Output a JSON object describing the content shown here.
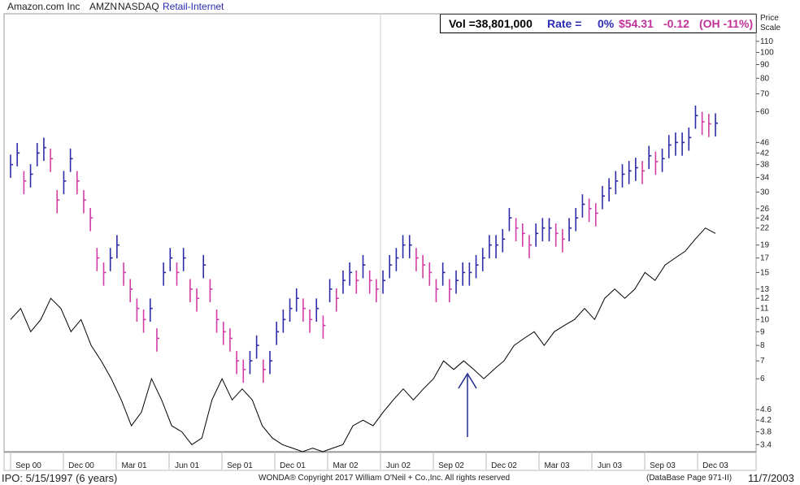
{
  "header": {
    "company": "Amazon.com Inc",
    "ticker": "AMZN",
    "exchange": "NASDAQ",
    "industry_group": "Retail-Internet"
  },
  "stats": {
    "volume": "Vol =38,801,000",
    "rate_label": "Rate =",
    "rate_value": "0%",
    "price": "$54.31",
    "change": "-0.12",
    "off_high": "(OH -11%)"
  },
  "price_scale_title": [
    "Price",
    "Scale"
  ],
  "footer": {
    "ipo": "IPO: 5/15/1997 (6 years)",
    "copyright": "WONDA® Copyright 2017 William O'Neil + Co.,Inc. All rights reserved",
    "database_page": "(DataBase Page 971-II)",
    "date": "11/7/2003"
  },
  "colors": {
    "up_bar": "#2c2ca8",
    "down_bar": "#d23ca6",
    "relative_strength_line": "#000000",
    "arrow": "#1f2a8c",
    "group_name": "#2b2bb0",
    "rate": "#2c2cb4",
    "price": "#c0329a"
  },
  "chart_data": {
    "type": "line",
    "subtype": "weekly price bars with relative strength line",
    "y_scale": "log",
    "ylim": [
      3.2,
      130
    ],
    "y_ticks": [
      3.4,
      3.8,
      4.2,
      4.6,
      6,
      7,
      8,
      9,
      10,
      11,
      12,
      13,
      15,
      17,
      19,
      22,
      24,
      26,
      30,
      34,
      38,
      42,
      46,
      60,
      70,
      80,
      90,
      100,
      110
    ],
    "x_labels": [
      "Sep 00",
      "Dec 00",
      "Mar 01",
      "Jun 01",
      "Sep 01",
      "Dec 01",
      "Mar 02",
      "Jun 02",
      "Sep 02",
      "Dec 02",
      "Mar 03",
      "Jun 03",
      "Sep 03",
      "Dec 03"
    ],
    "annotation": "up arrow at Sep 02",
    "price_series": [
      {
        "x": "Sep 00",
        "c": 38
      },
      {
        "x": "Sep 00",
        "c": 42
      },
      {
        "x": "Oct 00",
        "c": 33
      },
      {
        "x": "Oct 00",
        "c": 35
      },
      {
        "x": "Nov 00",
        "c": 42
      },
      {
        "x": "Nov 00",
        "c": 44
      },
      {
        "x": "Nov 00",
        "c": 40
      },
      {
        "x": "Dec 00",
        "c": 28
      },
      {
        "x": "Dec 00",
        "c": 33
      },
      {
        "x": "Dec 00",
        "c": 40
      },
      {
        "x": "Jan 01",
        "c": 33
      },
      {
        "x": "Jan 01",
        "c": 28
      },
      {
        "x": "Jan 01",
        "c": 24
      },
      {
        "x": "Feb 01",
        "c": 17
      },
      {
        "x": "Feb 01",
        "c": 15
      },
      {
        "x": "Feb 01",
        "c": 17
      },
      {
        "x": "Mar 01",
        "c": 19
      },
      {
        "x": "Mar 01",
        "c": 15
      },
      {
        "x": "Mar 01",
        "c": 13
      },
      {
        "x": "Apr 01",
        "c": 11
      },
      {
        "x": "Apr 01",
        "c": 10
      },
      {
        "x": "Apr 01",
        "c": 11
      },
      {
        "x": "May 01",
        "c": 8.5
      },
      {
        "x": "May 01",
        "c": 15
      },
      {
        "x": "May 01",
        "c": 17
      },
      {
        "x": "Jun 01",
        "c": 15
      },
      {
        "x": "Jun 01",
        "c": 17
      },
      {
        "x": "Jun 01",
        "c": 13
      },
      {
        "x": "Jul 01",
        "c": 12
      },
      {
        "x": "Jul 01",
        "c": 16
      },
      {
        "x": "Jul 01",
        "c": 13
      },
      {
        "x": "Aug 01",
        "c": 10
      },
      {
        "x": "Aug 01",
        "c": 9
      },
      {
        "x": "Aug 01",
        "c": 8.5
      },
      {
        "x": "Sep 01",
        "c": 7
      },
      {
        "x": "Sep 01",
        "c": 6.5
      },
      {
        "x": "Sep 01",
        "c": 7
      },
      {
        "x": "Oct 01",
        "c": 8
      },
      {
        "x": "Oct 01",
        "c": 6.5
      },
      {
        "x": "Oct 01",
        "c": 7
      },
      {
        "x": "Nov 01",
        "c": 9
      },
      {
        "x": "Nov 01",
        "c": 10
      },
      {
        "x": "Dec 01",
        "c": 11
      },
      {
        "x": "Dec 01",
        "c": 12
      },
      {
        "x": "Dec 01",
        "c": 11
      },
      {
        "x": "Jan 02",
        "c": 10
      },
      {
        "x": "Jan 02",
        "c": 11
      },
      {
        "x": "Jan 02",
        "c": 9.5
      },
      {
        "x": "Feb 02",
        "c": 13
      },
      {
        "x": "Feb 02",
        "c": 12
      },
      {
        "x": "Feb 02",
        "c": 14
      },
      {
        "x": "Mar 02",
        "c": 15
      },
      {
        "x": "Mar 02",
        "c": 14
      },
      {
        "x": "Mar 02",
        "c": 16
      },
      {
        "x": "Apr 02",
        "c": 14
      },
      {
        "x": "Apr 02",
        "c": 13
      },
      {
        "x": "Apr 02",
        "c": 14
      },
      {
        "x": "May 02",
        "c": 16
      },
      {
        "x": "May 02",
        "c": 17
      },
      {
        "x": "May 02",
        "c": 19
      },
      {
        "x": "Jun 02",
        "c": 19
      },
      {
        "x": "Jun 02",
        "c": 17
      },
      {
        "x": "Jun 02",
        "c": 16
      },
      {
        "x": "Jul 02",
        "c": 15
      },
      {
        "x": "Jul 02",
        "c": 13
      },
      {
        "x": "Jul 02",
        "c": 15
      },
      {
        "x": "Aug 02",
        "c": 13
      },
      {
        "x": "Aug 02",
        "c": 14
      },
      {
        "x": "Aug 02",
        "c": 15
      },
      {
        "x": "Sep 02",
        "c": 15
      },
      {
        "x": "Sep 02",
        "c": 16
      },
      {
        "x": "Sep 02",
        "c": 17
      },
      {
        "x": "Oct 02",
        "c": 19
      },
      {
        "x": "Oct 02",
        "c": 19
      },
      {
        "x": "Oct 02",
        "c": 20
      },
      {
        "x": "Nov 02",
        "c": 24
      },
      {
        "x": "Nov 02",
        "c": 22
      },
      {
        "x": "Nov 02",
        "c": 21
      },
      {
        "x": "Dec 02",
        "c": 19
      },
      {
        "x": "Dec 02",
        "c": 21
      },
      {
        "x": "Dec 02",
        "c": 22
      },
      {
        "x": "Jan 03",
        "c": 22
      },
      {
        "x": "Jan 03",
        "c": 21
      },
      {
        "x": "Jan 03",
        "c": 20
      },
      {
        "x": "Feb 03",
        "c": 22
      },
      {
        "x": "Feb 03",
        "c": 24
      },
      {
        "x": "Feb 03",
        "c": 27
      },
      {
        "x": "Mar 03",
        "c": 26
      },
      {
        "x": "Mar 03",
        "c": 25
      },
      {
        "x": "Mar 03",
        "c": 29
      },
      {
        "x": "Apr 03",
        "c": 31
      },
      {
        "x": "Apr 03",
        "c": 33
      },
      {
        "x": "Apr 03",
        "c": 35
      },
      {
        "x": "May 03",
        "c": 36
      },
      {
        "x": "May 03",
        "c": 37
      },
      {
        "x": "May 03",
        "c": 36
      },
      {
        "x": "Jun 03",
        "c": 41
      },
      {
        "x": "Jun 03",
        "c": 39
      },
      {
        "x": "Jun 03",
        "c": 40
      },
      {
        "x": "Jul 03",
        "c": 45
      },
      {
        "x": "Jul 03",
        "c": 46
      },
      {
        "x": "Jul 03",
        "c": 46
      },
      {
        "x": "Aug 03",
        "c": 48
      },
      {
        "x": "Aug 03",
        "c": 58
      },
      {
        "x": "Aug 03",
        "c": 55
      },
      {
        "x": "Sep 03",
        "c": 54
      },
      {
        "x": "Sep 03",
        "c": 54.3
      }
    ],
    "relative_strength_line": [
      10,
      11,
      9,
      10,
      12,
      11,
      9,
      10,
      8,
      7,
      6,
      5,
      4,
      4.5,
      6,
      5,
      4,
      3.8,
      3.4,
      3.6,
      5,
      6,
      5,
      5.5,
      5,
      4,
      3.6,
      3.4,
      3.3,
      3.2,
      3.3,
      3.2,
      3.3,
      3.4,
      4,
      4.2,
      4,
      4.5,
      5,
      5.5,
      5,
      5.5,
      6,
      7,
      6.5,
      7,
      6.5,
      6,
      6.5,
      7,
      8,
      8.5,
      9,
      8,
      9,
      9.5,
      10,
      11,
      10,
      12,
      13,
      12,
      13,
      15,
      14,
      16,
      17,
      18,
      20,
      22,
      21
    ]
  }
}
